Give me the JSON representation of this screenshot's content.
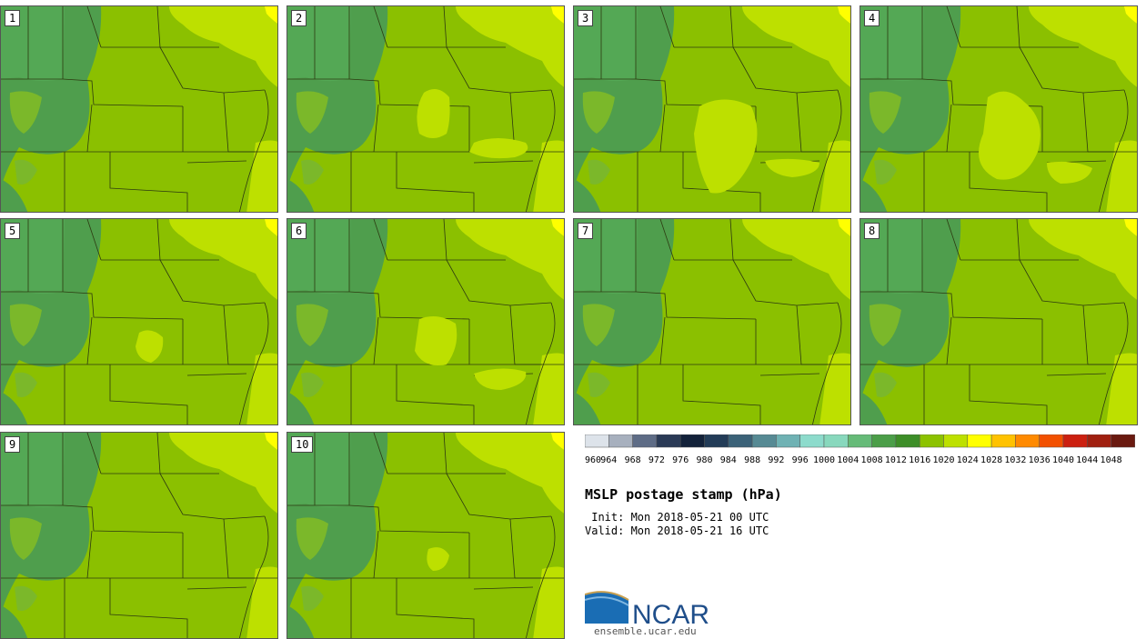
{
  "panels": [
    {
      "number": "1"
    },
    {
      "number": "2"
    },
    {
      "number": "3"
    },
    {
      "number": "4"
    },
    {
      "number": "5"
    },
    {
      "number": "6"
    },
    {
      "number": "7"
    },
    {
      "number": "8"
    },
    {
      "number": "9"
    },
    {
      "number": "10"
    }
  ],
  "colorbar": {
    "ticks": [
      "960",
      "964",
      "968",
      "972",
      "976",
      "980",
      "984",
      "988",
      "992",
      "996",
      "1000",
      "1004",
      "1008",
      "1012",
      "1016",
      "1020",
      "1024",
      "1028",
      "1032",
      "1036",
      "1040",
      "1044",
      "1048"
    ],
    "colors": [
      "#dde3ea",
      "#a7b0be",
      "#5e6c86",
      "#2a3a56",
      "#13223a",
      "#233c58",
      "#3b6278",
      "#568a94",
      "#6fb2b4",
      "#8ddbcc",
      "#88d8bd",
      "#66bb78",
      "#4b9e48",
      "#3d8e28",
      "#8cc200",
      "#bde000",
      "#ffff00",
      "#ffc200",
      "#ff8a00",
      "#f25000",
      "#cc2010",
      "#a02010",
      "#6a1a10"
    ]
  },
  "title": "MSLP postage stamp (hPa)",
  "init_text": " Init: Mon 2018-05-21 00 UTC",
  "valid_text": "Valid: Mon 2018-05-21 16 UTC",
  "logo": {
    "name": "NCAR",
    "url": "ensemble.ucar.edu"
  }
}
